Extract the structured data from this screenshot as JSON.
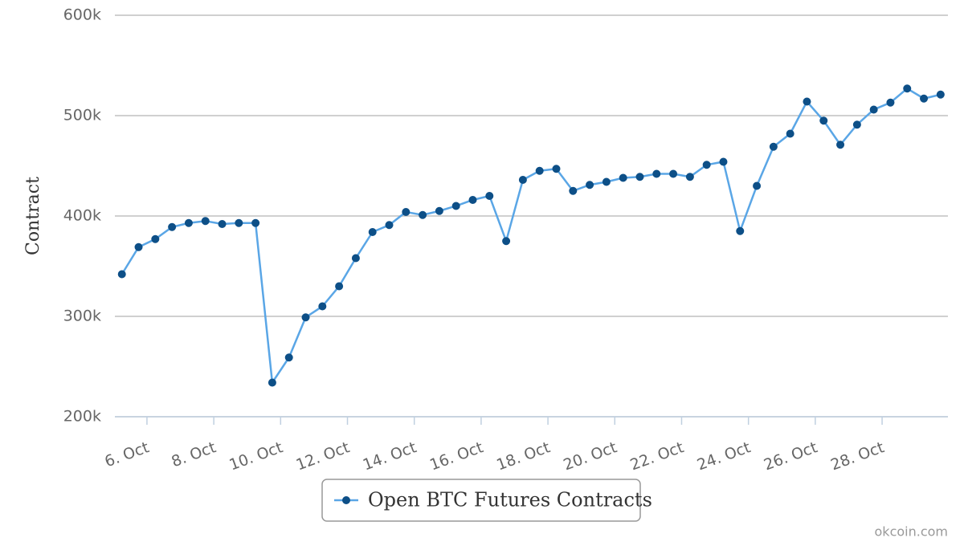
{
  "chart_data": {
    "type": "line",
    "y_label": "Contract",
    "x": [
      5.25,
      5.75,
      6.25,
      6.75,
      7.25,
      7.75,
      8.25,
      8.75,
      9.25,
      9.75,
      10.25,
      10.75,
      11.25,
      11.75,
      12.25,
      12.75,
      13.25,
      13.75,
      14.25,
      14.75,
      15.25,
      15.75,
      16.25,
      16.75,
      17.25,
      17.75,
      18.25,
      18.75,
      19.25,
      19.75,
      20.25,
      20.75,
      21.25,
      21.75,
      22.25,
      22.75,
      23.25,
      23.75,
      24.25,
      24.75,
      25.25,
      25.75,
      26.25,
      26.75,
      27.25,
      27.75,
      28.25,
      28.75,
      29.25,
      29.75
    ],
    "series": [
      {
        "name": "Open BTC Futures Contracts",
        "color": "#5aa6e6",
        "marker_color": "#0d4f87",
        "values": [
          342000,
          369000,
          377000,
          389000,
          393000,
          395000,
          392000,
          393000,
          393000,
          234000,
          259000,
          299000,
          310000,
          330000,
          358000,
          384000,
          391000,
          404000,
          401000,
          405000,
          410000,
          416000,
          420000,
          375000,
          436000,
          445000,
          447000,
          425000,
          431000,
          434000,
          438000,
          439000,
          442000,
          442000,
          439000,
          451000,
          454000,
          385000,
          430000,
          469000,
          482000,
          514000,
          495000,
          471000,
          491000,
          506000,
          513000,
          527000,
          517000,
          521000
        ]
      }
    ],
    "xlim": [
      5.04,
      29.97
    ],
    "xticks": [
      {
        "value": 6,
        "label": "6. Oct"
      },
      {
        "value": 8,
        "label": "8. Oct"
      },
      {
        "value": 10,
        "label": "10. Oct"
      },
      {
        "value": 12,
        "label": "12. Oct"
      },
      {
        "value": 14,
        "label": "14. Oct"
      },
      {
        "value": 16,
        "label": "16. Oct"
      },
      {
        "value": 18,
        "label": "18. Oct"
      },
      {
        "value": 20,
        "label": "20. Oct"
      },
      {
        "value": 22,
        "label": "22. Oct"
      },
      {
        "value": 24,
        "label": "24. Oct"
      },
      {
        "value": 26,
        "label": "26. Oct"
      },
      {
        "value": 28,
        "label": "28. Oct"
      }
    ],
    "ylim": [
      200000,
      600000
    ],
    "yticks": [
      {
        "value": 200000,
        "label": "200k"
      },
      {
        "value": 300000,
        "label": "300k"
      },
      {
        "value": 400000,
        "label": "400k"
      },
      {
        "value": 500000,
        "label": "500k"
      },
      {
        "value": 600000,
        "label": "600k"
      }
    ],
    "grid": true,
    "legend": "bottom",
    "credit": "okcoin.com"
  }
}
